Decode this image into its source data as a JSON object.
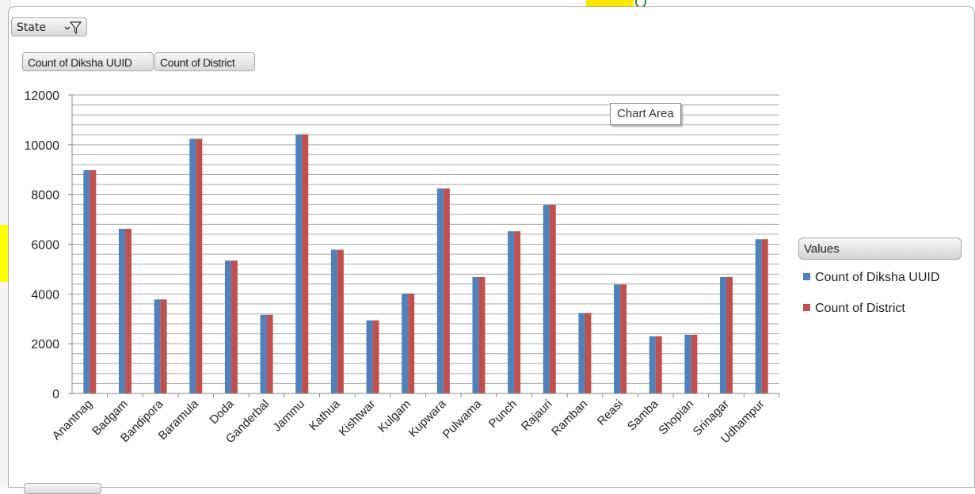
{
  "filter": {
    "label": "State",
    "icon": "filter-icon"
  },
  "value_fields": [
    "Count of Diksha UUID",
    "Count of District"
  ],
  "tooltip": "Chart Area",
  "legend": {
    "title": "Values",
    "items": [
      {
        "label": "Count of Diksha UUID",
        "color": "#4f81bd"
      },
      {
        "label": "Count of District",
        "color": "#c0504d"
      }
    ]
  },
  "chart_data": {
    "type": "bar",
    "categories": [
      "Anantnag",
      "Badgam",
      "Bandipora",
      "Baramula",
      "Doda",
      "Ganderbal",
      "Jammu",
      "Kathua",
      "Kishtwar",
      "Kulgam",
      "Kupwara",
      "Pulwama",
      "Punch",
      "Rajauri",
      "Ramban",
      "Reasi",
      "Samba",
      "Shopian",
      "Srinagar",
      "Udhampur"
    ],
    "series": [
      {
        "name": "Count of Diksha UUID",
        "color": "#4f81bd",
        "values": [
          8980,
          6620,
          3780,
          10240,
          5340,
          3160,
          10420,
          5780,
          2940,
          4020,
          8240,
          4680,
          6520,
          7580,
          3240,
          4380,
          2300,
          2360,
          4680,
          6200
        ]
      },
      {
        "name": "Count of District",
        "color": "#c0504d",
        "values": [
          8980,
          6620,
          3780,
          10240,
          5340,
          3160,
          10420,
          5780,
          2940,
          4020,
          8240,
          4680,
          6520,
          7580,
          3240,
          4380,
          2300,
          2360,
          4680,
          6200
        ]
      }
    ],
    "yticks": [
      0,
      2000,
      4000,
      6000,
      8000,
      10000,
      12000
    ],
    "ylim": [
      0,
      12000
    ],
    "minor_grid_step": 400,
    "grid": true,
    "legend_position": "right"
  }
}
